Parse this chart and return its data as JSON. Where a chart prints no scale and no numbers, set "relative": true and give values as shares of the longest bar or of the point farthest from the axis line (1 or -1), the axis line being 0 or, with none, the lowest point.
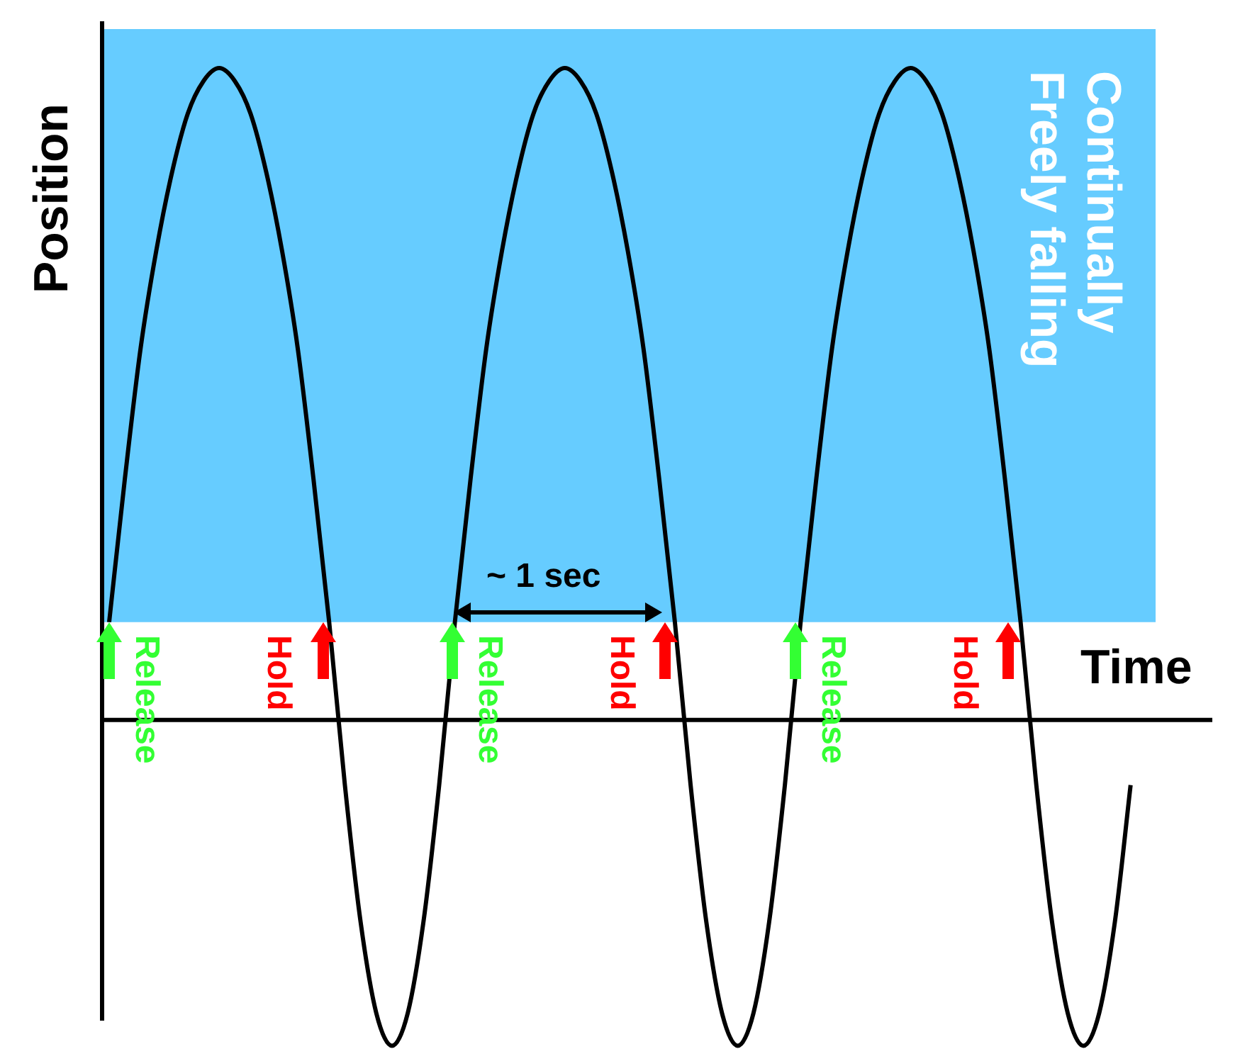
{
  "chart_data": {
    "type": "line",
    "relative": true,
    "xlabel": "Time",
    "ylabel": "Position",
    "categories": [
      null,
      null,
      null,
      null,
      null,
      null,
      null,
      null,
      null,
      null,
      null,
      null,
      null,
      null,
      null,
      null,
      null,
      null,
      null,
      null,
      null,
      null,
      null,
      null,
      null,
      null,
      null,
      null,
      null,
      null,
      null,
      null,
      null,
      null,
      null,
      null,
      null,
      null,
      null,
      null,
      null,
      null,
      null,
      null,
      null,
      null,
      null,
      null,
      null,
      null,
      null,
      null,
      null,
      null,
      null,
      null,
      null,
      null,
      null,
      null,
      null,
      null,
      null,
      null,
      null,
      null
    ],
    "series": [
      {
        "color": "#000000",
        "values": [
          0.15,
          0.37,
          0.57,
          0.72,
          0.84,
          0.93,
          0.98,
          1,
          0.98,
          0.93,
          0.84,
          0.72,
          0.57,
          0.37,
          0.15,
          -0.1,
          -0.31,
          -0.45,
          -0.5,
          -0.45,
          -0.31,
          -0.1,
          0.15,
          0.37,
          0.57,
          0.72,
          0.84,
          0.93,
          0.98,
          1,
          0.98,
          0.93,
          0.84,
          0.72,
          0.57,
          0.37,
          0.15,
          -0.1,
          -0.31,
          -0.45,
          -0.5,
          -0.45,
          -0.31,
          -0.1,
          0.15,
          0.37,
          0.57,
          0.72,
          0.84,
          0.93,
          0.98,
          1,
          0.98,
          0.93,
          0.84,
          0.72,
          0.57,
          0.37,
          0.15,
          -0.1,
          -0.31,
          -0.45,
          -0.5,
          -0.45,
          -0.31,
          -0.1
        ]
      }
    ],
    "bands": [
      {
        "axis": "y",
        "from": 0.15,
        "to": 1.06,
        "color": "#66ccff"
      }
    ],
    "annotations": [
      "Release",
      "Hold",
      "Release",
      "Hold",
      "Release",
      "Hold",
      "~ 1 sec",
      "Continually",
      "Freely falling"
    ],
    "legend": false,
    "marker": "none",
    "line_style": "solid"
  }
}
